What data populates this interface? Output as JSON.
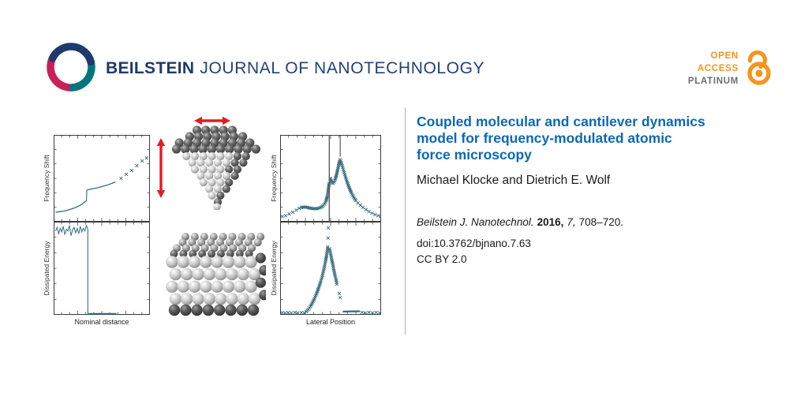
{
  "header": {
    "brand_bold": "BEILSTEIN",
    "brand_rest": "JOURNAL OF NANOTECHNOLOGY",
    "open_access": {
      "line1": "OPEN",
      "line2": "ACCESS",
      "line3": "PLATINUM"
    }
  },
  "article": {
    "title": "Coupled molecular and cantilever dynamics model for frequency-modulated atomic force microscopy",
    "title_lines": [
      "Coupled molecular and cantilever dynamics",
      "model for frequency-modulated atomic",
      "force microscopy"
    ],
    "authors": "Michael Klocke and Dietrich E. Wolf",
    "citation": {
      "journal": "Beilstein J. Nanotechnol.",
      "year": "2016,",
      "volume": "7,",
      "pages": "708–720."
    },
    "doi": "doi:10.3762/bjnano.7.63",
    "license": "CC BY 2.0"
  },
  "icons": {
    "journal_logo": "beilstein-swirl (navy/teal/magenta arcs)",
    "open_access_lock": "orange open padlock",
    "tip_image": "afm-tip-atom-cluster (inverted pyramid of spheres)",
    "substrate_image": "substrate-atom-lattice (slab of spheres)",
    "oscillation_arrows": "red double-headed arrows (lateral and vertical)"
  },
  "colors": {
    "title_blue": "#0d68b2",
    "brand_navy": "#1e3a6d",
    "logo_teal": "#00767c",
    "logo_magenta": "#c9205a",
    "oa_orange": "#f7941d",
    "oa_gray": "#6d6e70",
    "plot_teal": "#366b7c",
    "arrow_red": "#e31b23"
  },
  "chart_data": [
    {
      "id": "approach-frequency-shift",
      "type": "line",
      "ylabel": "Frequency Shift",
      "xlabel": "",
      "xlim": [
        0,
        1
      ],
      "ylim": [
        0,
        1
      ],
      "series": [
        {
          "name": "approach-curve",
          "style": "line",
          "width": 1.3,
          "points": [
            [
              0.02,
              0.11
            ],
            [
              0.06,
              0.115
            ],
            [
              0.1,
              0.122
            ],
            [
              0.14,
              0.132
            ],
            [
              0.18,
              0.145
            ],
            [
              0.22,
              0.16
            ],
            [
              0.26,
              0.18
            ],
            [
              0.29,
              0.2
            ],
            [
              0.32,
              0.225
            ],
            [
              0.34,
              0.24
            ]
          ]
        },
        {
          "name": "jump-to-contact",
          "style": "line",
          "width": 1.1,
          "points": [
            [
              0.34,
              0.24
            ],
            [
              0.345,
              0.365
            ]
          ]
        },
        {
          "name": "contact-branch",
          "style": "line",
          "width": 1.3,
          "points": [
            [
              0.345,
              0.365
            ],
            [
              0.4,
              0.378
            ],
            [
              0.45,
              0.39
            ],
            [
              0.5,
              0.405
            ],
            [
              0.55,
              0.42
            ],
            [
              0.6,
              0.44
            ],
            [
              0.64,
              0.458
            ]
          ]
        },
        {
          "name": "retract-markers",
          "style": "xmarks",
          "points": [
            [
              0.7,
              0.5
            ],
            [
              0.755,
              0.545
            ],
            [
              0.81,
              0.59
            ],
            [
              0.865,
              0.645
            ],
            [
              0.92,
              0.7
            ],
            [
              0.965,
              0.735
            ]
          ]
        }
      ]
    },
    {
      "id": "approach-dissipated-energy",
      "type": "line",
      "ylabel": "Dissipated Energy",
      "xlabel": "Nominal distance",
      "xlim": [
        0,
        1
      ],
      "ylim": [
        0,
        1
      ],
      "series": [
        {
          "name": "noisy-dissipation",
          "style": "line",
          "width": 1.0,
          "points": [
            [
              0.02,
              0.9
            ],
            [
              0.036,
              0.94
            ],
            [
              0.052,
              0.87
            ],
            [
              0.068,
              0.93
            ],
            [
              0.084,
              0.89
            ],
            [
              0.1,
              0.95
            ],
            [
              0.116,
              0.86
            ],
            [
              0.132,
              0.92
            ],
            [
              0.148,
              0.9
            ],
            [
              0.164,
              0.96
            ],
            [
              0.18,
              0.85
            ],
            [
              0.196,
              0.91
            ],
            [
              0.212,
              0.94
            ],
            [
              0.228,
              0.88
            ],
            [
              0.244,
              0.93
            ],
            [
              0.26,
              0.87
            ],
            [
              0.276,
              0.95
            ],
            [
              0.292,
              0.89
            ],
            [
              0.308,
              0.93
            ],
            [
              0.324,
              0.9
            ],
            [
              0.34,
              0.96
            ],
            [
              0.355,
              0.92
            ]
          ]
        },
        {
          "name": "drop",
          "style": "line",
          "width": 1.1,
          "points": [
            [
              0.355,
              0.92
            ],
            [
              0.355,
              0.012
            ]
          ]
        },
        {
          "name": "zero-baseline",
          "style": "line",
          "width": 1.8,
          "points": [
            [
              0.355,
              0.012
            ],
            [
              0.65,
              0.012
            ]
          ]
        }
      ]
    },
    {
      "id": "lateral-frequency-shift",
      "type": "scatter",
      "ylabel": "Frequency Shift",
      "xlabel": "",
      "xlim": [
        0,
        1
      ],
      "ylim": [
        0,
        1
      ],
      "series": [
        {
          "name": "left-tail",
          "style": "xmarks",
          "points": [
            [
              0.02,
              0.06
            ],
            [
              0.055,
              0.07
            ],
            [
              0.09,
              0.09
            ],
            [
              0.125,
              0.11
            ],
            [
              0.16,
              0.135
            ],
            [
              0.19,
              0.155
            ]
          ]
        },
        {
          "name": "left-dip-cluster",
          "style": "xmarks",
          "dense": true,
          "points": [
            [
              0.21,
              0.165
            ],
            [
              0.25,
              0.17
            ],
            [
              0.29,
              0.158
            ],
            [
              0.33,
              0.15
            ],
            [
              0.37,
              0.152
            ],
            [
              0.4,
              0.163
            ],
            [
              0.42,
              0.178
            ],
            [
              0.44,
              0.205
            ],
            [
              0.455,
              0.24
            ],
            [
              0.465,
              0.285
            ],
            [
              0.475,
              0.345
            ],
            [
              0.482,
              0.41
            ],
            [
              0.485,
              0.44
            ]
          ]
        },
        {
          "name": "peak-cluster",
          "style": "xmarks",
          "dense": true,
          "points": [
            [
              0.497,
              0.5
            ],
            [
              0.505,
              0.472
            ],
            [
              0.515,
              0.448
            ],
            [
              0.525,
              0.443
            ],
            [
              0.535,
              0.458
            ],
            [
              0.548,
              0.495
            ],
            [
              0.558,
              0.54
            ],
            [
              0.568,
              0.59
            ],
            [
              0.578,
              0.645
            ],
            [
              0.588,
              0.695
            ],
            [
              0.592,
              0.715
            ]
          ]
        },
        {
          "name": "descent-cluster",
          "style": "xmarks",
          "dense": true,
          "points": [
            [
              0.6,
              0.7
            ],
            [
              0.615,
              0.645
            ],
            [
              0.63,
              0.585
            ],
            [
              0.645,
              0.525
            ],
            [
              0.66,
              0.47
            ],
            [
              0.675,
              0.42
            ],
            [
              0.69,
              0.375
            ],
            [
              0.705,
              0.335
            ],
            [
              0.72,
              0.3
            ],
            [
              0.735,
              0.27
            ],
            [
              0.75,
              0.245
            ]
          ]
        },
        {
          "name": "right-tail",
          "style": "xmarks",
          "points": [
            [
              0.77,
              0.215
            ],
            [
              0.795,
              0.19
            ],
            [
              0.82,
              0.165
            ],
            [
              0.85,
              0.14
            ],
            [
              0.88,
              0.118
            ],
            [
              0.91,
              0.098
            ],
            [
              0.94,
              0.082
            ],
            [
              0.97,
              0.07
            ],
            [
              0.995,
              0.062
            ]
          ]
        },
        {
          "name": "marker-line-full",
          "style": "vline",
          "x": 0.487,
          "y1": 0,
          "y2": 1,
          "color": "#5a5a5a",
          "width": 1.4
        },
        {
          "name": "marker-line-partial",
          "style": "vline",
          "x": 0.595,
          "y1": 0.75,
          "y2": 1,
          "color": "#3a3a3a",
          "width": 1.0
        }
      ]
    },
    {
      "id": "lateral-dissipated-energy",
      "type": "scatter",
      "ylabel": "Dissipated Energy",
      "xlabel": "Lateral Position",
      "xlim": [
        0,
        1
      ],
      "ylim": [
        0,
        1
      ],
      "series": [
        {
          "name": "left-baseline",
          "style": "xmarks",
          "points": [
            [
              0.02,
              0.022
            ],
            [
              0.05,
              0.02
            ],
            [
              0.08,
              0.024
            ],
            [
              0.11,
              0.02
            ],
            [
              0.145,
              0.025
            ],
            [
              0.175,
              0.02
            ],
            [
              0.21,
              0.024
            ],
            [
              0.24,
              0.02
            ]
          ]
        },
        {
          "name": "rising-branch",
          "style": "xmarks",
          "dense": true,
          "points": [
            [
              0.26,
              0.035
            ],
            [
              0.28,
              0.06
            ],
            [
              0.3,
              0.09
            ],
            [
              0.32,
              0.13
            ],
            [
              0.34,
              0.175
            ],
            [
              0.36,
              0.225
            ],
            [
              0.38,
              0.285
            ],
            [
              0.4,
              0.35
            ],
            [
              0.42,
              0.425
            ],
            [
              0.435,
              0.5
            ],
            [
              0.45,
              0.575
            ],
            [
              0.46,
              0.64
            ],
            [
              0.468,
              0.695
            ],
            [
              0.472,
              0.73
            ]
          ]
        },
        {
          "name": "apex-markers",
          "style": "xmarks",
          "points": [
            [
              0.475,
              0.825
            ],
            [
              0.477,
              0.935
            ]
          ]
        },
        {
          "name": "falling-branch",
          "style": "xmarks",
          "dense": true,
          "points": [
            [
              0.49,
              0.71
            ],
            [
              0.5,
              0.655
            ],
            [
              0.51,
              0.6
            ],
            [
              0.52,
              0.55
            ],
            [
              0.53,
              0.495
            ],
            [
              0.54,
              0.44
            ],
            [
              0.552,
              0.385
            ],
            [
              0.562,
              0.33
            ]
          ]
        },
        {
          "name": "falling-branch-lower",
          "style": "xmarks",
          "points": [
            [
              0.585,
              0.23
            ],
            [
              0.595,
              0.185
            ]
          ]
        },
        {
          "name": "right-baseline-thick",
          "style": "line",
          "width": 2.2,
          "points": [
            [
              0.62,
              0.035
            ],
            [
              0.79,
              0.038
            ]
          ]
        },
        {
          "name": "right-baseline-sparse",
          "style": "xmarks",
          "points": [
            [
              0.81,
              0.026
            ],
            [
              0.845,
              0.02
            ],
            [
              0.88,
              0.026
            ],
            [
              0.915,
              0.02
            ],
            [
              0.95,
              0.026
            ],
            [
              0.985,
              0.02
            ]
          ]
        }
      ]
    }
  ]
}
